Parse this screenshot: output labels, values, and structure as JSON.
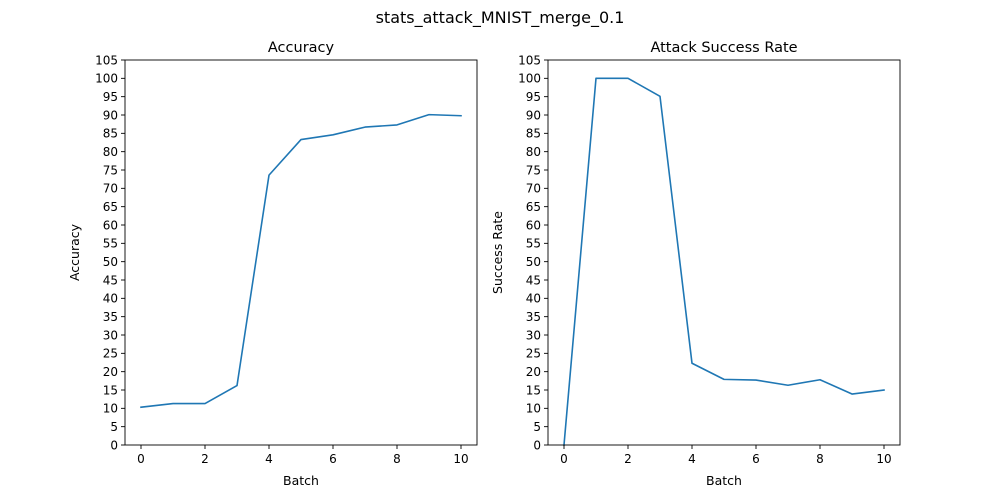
{
  "figure": {
    "suptitle": "stats_attack_MNIST_merge_0.1"
  },
  "chart_data": [
    {
      "type": "line",
      "title": "Accuracy",
      "xlabel": "Batch",
      "ylabel": "Accuracy",
      "x": [
        0,
        1,
        2,
        3,
        4,
        5,
        6,
        7,
        8,
        9,
        10
      ],
      "series": [
        {
          "values": [
            10.3,
            11.3,
            11.3,
            16.2,
            73.6,
            83.3,
            84.6,
            86.7,
            87.3,
            90.1,
            89.8
          ],
          "color": "#1f77b4"
        }
      ],
      "xlim": [
        -0.5,
        10.5
      ],
      "ylim": [
        0,
        105
      ],
      "xticks": [
        0,
        2,
        4,
        6,
        8,
        10
      ],
      "yticks": [
        0,
        5,
        10,
        15,
        20,
        25,
        30,
        35,
        40,
        45,
        50,
        55,
        60,
        65,
        70,
        75,
        80,
        85,
        90,
        95,
        100,
        105
      ],
      "grid": false
    },
    {
      "type": "line",
      "title": "Attack Success Rate",
      "xlabel": "Batch",
      "ylabel": "Success Rate",
      "x": [
        0,
        1,
        2,
        3,
        4,
        5,
        6,
        7,
        8,
        9,
        10
      ],
      "series": [
        {
          "values": [
            0,
            100,
            100,
            95.1,
            22.3,
            17.9,
            17.7,
            16.3,
            17.8,
            13.9,
            15.0
          ],
          "color": "#1f77b4"
        }
      ],
      "xlim": [
        -0.5,
        10.5
      ],
      "ylim": [
        0,
        105
      ],
      "xticks": [
        0,
        2,
        4,
        6,
        8,
        10
      ],
      "yticks": [
        0,
        5,
        10,
        15,
        20,
        25,
        30,
        35,
        40,
        45,
        50,
        55,
        60,
        65,
        70,
        75,
        80,
        85,
        90,
        95,
        100,
        105
      ],
      "grid": false
    }
  ]
}
